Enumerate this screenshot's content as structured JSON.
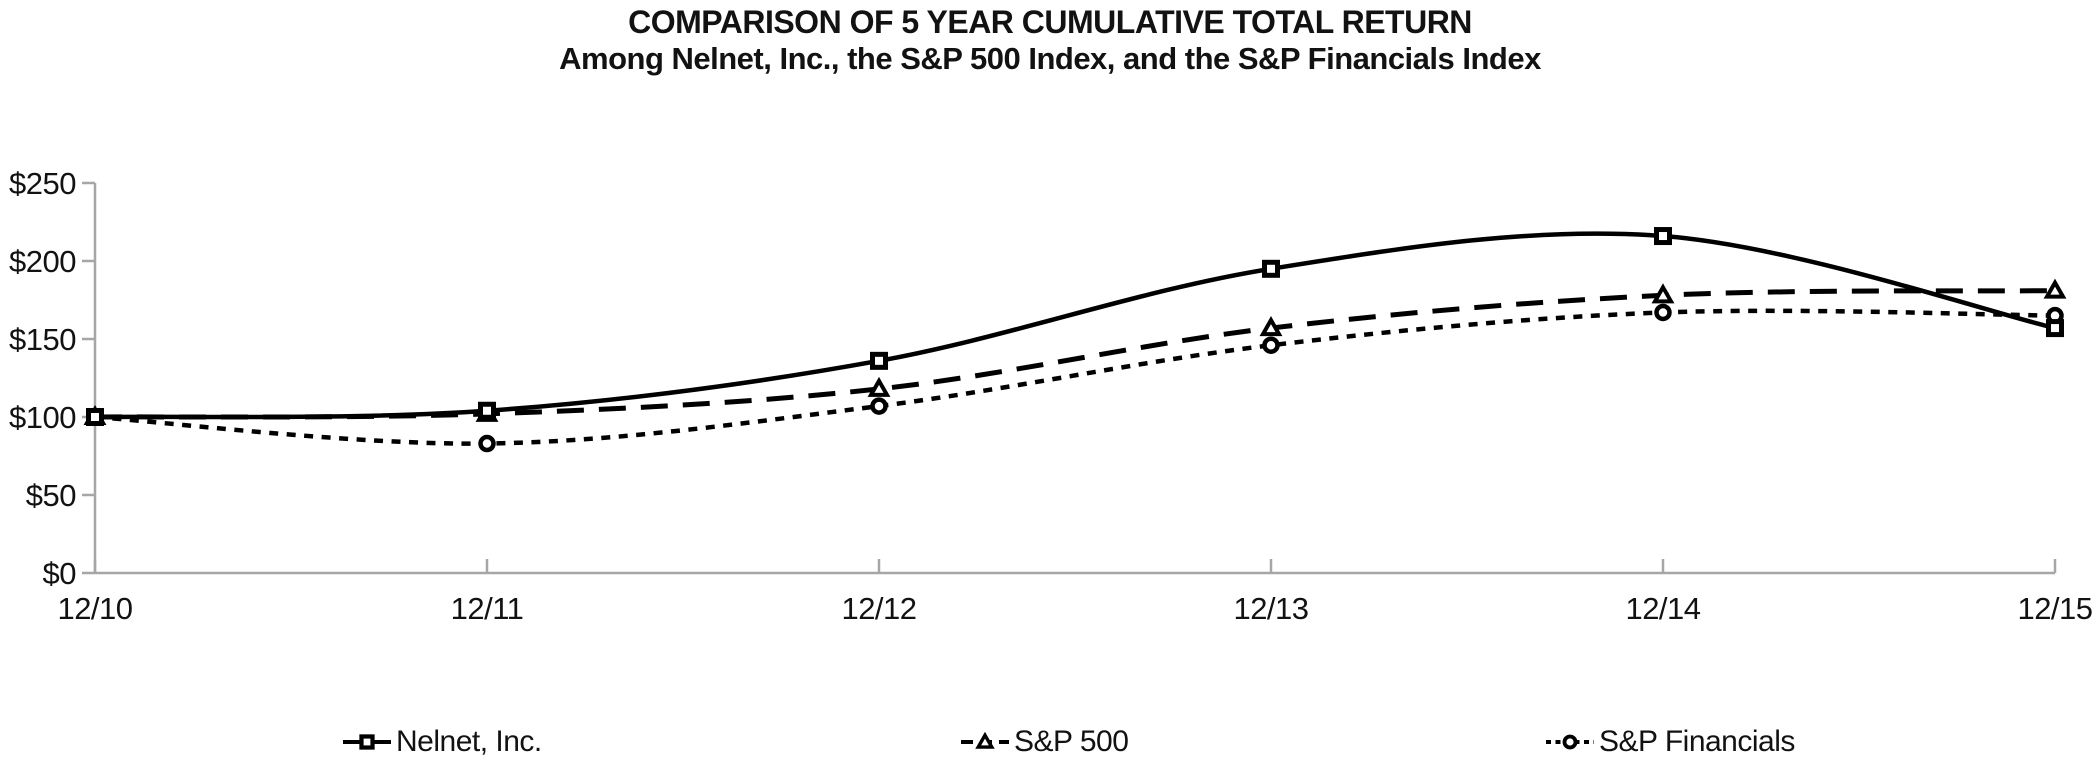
{
  "title": "COMPARISON OF 5 YEAR CUMULATIVE TOTAL RETURN",
  "subtitle": "Among Nelnet, Inc., the S&P 500 Index, and the S&P Financials Index",
  "chart_data": {
    "type": "line",
    "x": [
      "12/10",
      "12/11",
      "12/12",
      "12/13",
      "12/14",
      "12/15"
    ],
    "series": [
      {
        "name": "Nelnet, Inc.",
        "marker": "square",
        "dash": "solid",
        "values": [
          100,
          104,
          136,
          195,
          216,
          157
        ]
      },
      {
        "name": "S&P 500",
        "marker": "triangle",
        "dash": "long-dash",
        "values": [
          100,
          102,
          118,
          157,
          178,
          181
        ]
      },
      {
        "name": "S&P Financials",
        "marker": "circle",
        "dash": "short-dash",
        "values": [
          100,
          83,
          107,
          146,
          167,
          165
        ]
      }
    ],
    "ylabel_prefix": "$",
    "ylim": [
      0,
      250
    ],
    "ytick_step": 50,
    "ytick_labels": [
      "$0",
      "$50",
      "$100",
      "$150",
      "$200",
      "$250"
    ],
    "grid": false,
    "legend_position": "bottom",
    "series_color": "#000000",
    "axis_color": "#a6a6a6"
  }
}
